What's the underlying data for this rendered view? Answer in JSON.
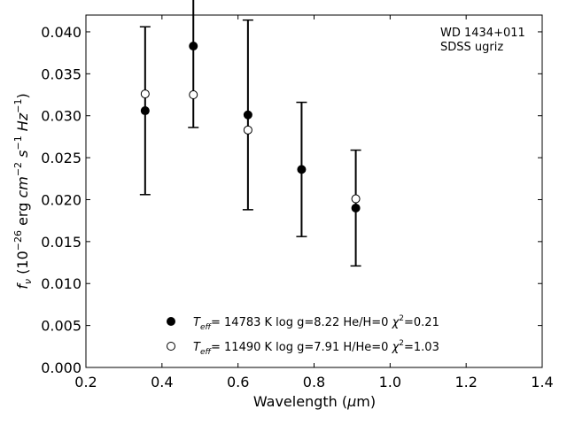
{
  "chart_data": {
    "type": "scatter",
    "annotation_lines": [
      "WD 1434+011",
      "SDSS ugriz"
    ],
    "xlabel": "Wavelength (μm)",
    "ylabel": "fν (10⁻²⁶ erg cm⁻² s⁻¹ Hz⁻¹)",
    "xlim": [
      0.2,
      1.4
    ],
    "ylim": [
      0.0,
      0.042
    ],
    "x_ticks": [
      0.2,
      0.4,
      0.6,
      0.8,
      1.0,
      1.2,
      1.4
    ],
    "x_tick_labels": [
      "0.2",
      "0.4",
      "0.6",
      "0.8",
      "1.0",
      "1.2",
      "1.4"
    ],
    "y_ticks": [
      0.0,
      0.005,
      0.01,
      0.015,
      0.02,
      0.025,
      0.03,
      0.035,
      0.04
    ],
    "y_tick_labels": [
      "0.000",
      "0.005",
      "0.010",
      "0.015",
      "0.020",
      "0.025",
      "0.030",
      "0.035",
      "0.040"
    ],
    "grid": false,
    "legend_position": "bottom-center",
    "observed": {
      "x": [
        0.3557,
        0.4825,
        0.6261,
        0.7672,
        0.9097
      ],
      "y": [
        0.0306,
        0.0383,
        0.0301,
        0.0236,
        0.019
      ],
      "yerr": [
        0.01,
        0.0097,
        0.0113,
        0.008,
        0.0069
      ]
    },
    "series": [
      {
        "name": "T_eff= 14783 K  log g=8.22  He/H=0  χ²=0.21",
        "marker": "filled",
        "x": [
          0.3557,
          0.4825,
          0.6261,
          0.7672,
          0.9097
        ],
        "y": [
          0.0306,
          0.0383,
          0.0301,
          0.0236,
          0.019
        ]
      },
      {
        "name": "T_eff= 11490 K  log g=7.91  H/He=0  χ²=1.03",
        "marker": "open",
        "x": [
          0.3557,
          0.4825,
          0.6261,
          0.9097
        ],
        "y": [
          0.0326,
          0.0325,
          0.0283,
          0.0201
        ]
      }
    ]
  }
}
